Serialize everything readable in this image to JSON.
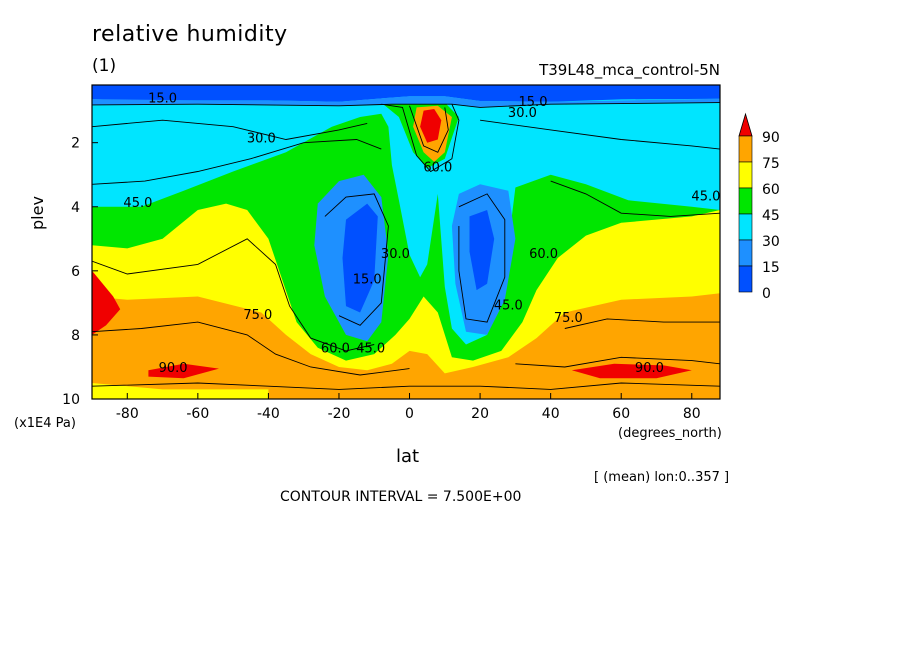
{
  "chart_data": {
    "type": "heatmap",
    "title": "relative humidity",
    "subtitle": "(1)",
    "run_label": "T39L48_mca_control-5N",
    "xlabel": "lat",
    "xunit": "(degrees_north)",
    "ylabel": "plev",
    "yunit": "(x1E4 Pa)",
    "xlim": [
      -90,
      88
    ],
    "ylim": [
      10,
      0.2
    ],
    "x_ticks": [
      -80,
      -60,
      -40,
      -20,
      0,
      20,
      40,
      60,
      80
    ],
    "y_ticks": [
      2,
      4,
      6,
      8,
      10
    ],
    "levels": [
      0,
      15,
      30,
      45,
      60,
      75,
      90
    ],
    "colorbar_labels": [
      "90",
      "75",
      "60",
      "45",
      "30",
      "15",
      "0"
    ],
    "colors": [
      "#0050ff",
      "#1e90ff",
      "#00e5ff",
      "#00e600",
      "#ffff00",
      "#ffa500",
      "#f00000"
    ],
    "contour_interval_text": "CONTOUR INTERVAL = 7.500E+00",
    "averaging_text": "[ (mean) lon:0..357 ]",
    "contour_labels": [
      {
        "text": "15.0",
        "lat": -70,
        "p": 0.75
      },
      {
        "text": "30.0",
        "lat": -42,
        "p": 2.0
      },
      {
        "text": "45.0",
        "lat": -77,
        "p": 4.0
      },
      {
        "text": "75.0",
        "lat": -43,
        "p": 7.5
      },
      {
        "text": "90.0",
        "lat": -67,
        "p": 9.15
      },
      {
        "text": "60.0",
        "lat": -21,
        "p": 8.55
      },
      {
        "text": "45.0",
        "lat": -11,
        "p": 8.55
      },
      {
        "text": "15.0",
        "lat": -12,
        "p": 6.4
      },
      {
        "text": "30.0",
        "lat": -4,
        "p": 5.6
      },
      {
        "text": "60.0",
        "lat": 8,
        "p": 2.9
      },
      {
        "text": "60.0",
        "lat": 38,
        "p": 5.6
      },
      {
        "text": "45.0",
        "lat": 28,
        "p": 7.2
      },
      {
        "text": "75.0",
        "lat": 45,
        "p": 7.6
      },
      {
        "text": "90.0",
        "lat": 68,
        "p": 9.15
      },
      {
        "text": "45.0",
        "lat": 84,
        "p": 3.8
      },
      {
        "text": "30.0",
        "lat": 32,
        "p": 1.2
      },
      {
        "text": "15.0",
        "lat": 35,
        "p": 0.85
      }
    ],
    "regions": [
      {
        "name": "band-15-0-upper",
        "level": 15,
        "lat": [
          -90,
          -80,
          -60,
          -40,
          -20,
          0,
          20,
          40,
          60,
          80,
          88
        ],
        "p_top": [
          0.2,
          0.2,
          0.2,
          0.2,
          0.2,
          0.2,
          0.2,
          0.2,
          0.2,
          0.2,
          0.2
        ],
        "p_bot": [
          0.65,
          0.7,
          0.7,
          0.72,
          0.75,
          0.7,
          0.7,
          0.75,
          0.72,
          0.7,
          0.7
        ]
      },
      {
        "name": "dry-pocket-south",
        "level": 15,
        "lat": [
          -17,
          -14,
          -11,
          -9
        ],
        "shape": "pocket",
        "p_range": [
          3.5,
          7.0
        ]
      },
      {
        "name": "dry-pocket-north",
        "level": 15,
        "lat": [
          18,
          21,
          24,
          26
        ],
        "shape": "pocket",
        "p_range": [
          4.0,
          7.0
        ]
      }
    ]
  }
}
